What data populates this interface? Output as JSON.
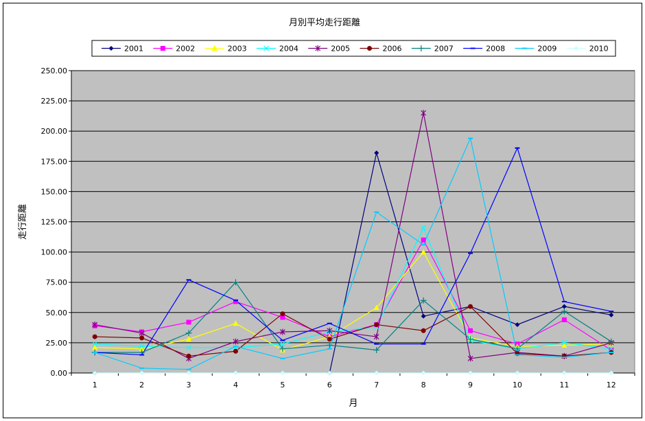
{
  "chart_data": {
    "type": "line",
    "title": "月別平均走行距離",
    "xlabel": "月",
    "ylabel": "走行距離",
    "ylim": [
      0,
      250
    ],
    "yticks": [
      "0.00",
      "25.00",
      "50.00",
      "75.00",
      "100.00",
      "125.00",
      "150.00",
      "175.00",
      "200.00",
      "225.00",
      "250.00"
    ],
    "x": [
      1,
      2,
      3,
      4,
      5,
      6,
      7,
      8,
      9,
      10,
      11,
      12
    ],
    "x_labels": [
      "1",
      "2",
      "3",
      "4",
      "5",
      "6",
      "7",
      "8",
      "9",
      "10",
      "11",
      "12"
    ],
    "grid": "horizontal",
    "plot_background": "#c0c0c0",
    "legend_position": "top",
    "series": [
      {
        "name": "2001",
        "color": "#000080",
        "marker": "diamond",
        "values": [
          0,
          null,
          null,
          null,
          null,
          0,
          182,
          47,
          55,
          40,
          55,
          48
        ]
      },
      {
        "name": "2002",
        "color": "#ff00ff",
        "marker": "square",
        "values": [
          39,
          34,
          42,
          59,
          46,
          30,
          40,
          110,
          35,
          24,
          44,
          19
        ]
      },
      {
        "name": "2003",
        "color": "#ffff00",
        "marker": "triangle",
        "values": [
          21,
          20,
          28,
          41,
          19,
          30,
          54,
          100,
          29,
          22,
          23,
          24
        ]
      },
      {
        "name": "2004",
        "color": "#00ffff",
        "marker": "x",
        "values": [
          24,
          22,
          21,
          21,
          24,
          34,
          38,
          120,
          27,
          20,
          25,
          20
        ]
      },
      {
        "name": "2005",
        "color": "#800080",
        "marker": "asterisk",
        "values": [
          40,
          33,
          12,
          26,
          34,
          35,
          30,
          215,
          12,
          17,
          14,
          25
        ]
      },
      {
        "name": "2006",
        "color": "#800000",
        "marker": "circle",
        "values": [
          30,
          29,
          14,
          18,
          49,
          28,
          40,
          35,
          55,
          16,
          14,
          17
        ]
      },
      {
        "name": "2007",
        "color": "#008080",
        "marker": "plus",
        "values": [
          17,
          17,
          33,
          75,
          20,
          23,
          19,
          60,
          28,
          20,
          51,
          26
        ]
      },
      {
        "name": "2008",
        "color": "#0000ff",
        "marker": "dash",
        "values": [
          17,
          15,
          77,
          60,
          27,
          41,
          24,
          24,
          99,
          186,
          59,
          51
        ]
      },
      {
        "name": "2009",
        "color": "#00ccff",
        "marker": "dash",
        "values": [
          17,
          4,
          3,
          22,
          12,
          20,
          133,
          106,
          194,
          15,
          13,
          17
        ]
      },
      {
        "name": "2010",
        "color": "#ccffff",
        "marker": "diamond",
        "values": [
          0,
          0,
          0,
          0,
          0,
          0,
          0,
          0,
          0,
          0,
          0,
          0
        ]
      }
    ]
  }
}
